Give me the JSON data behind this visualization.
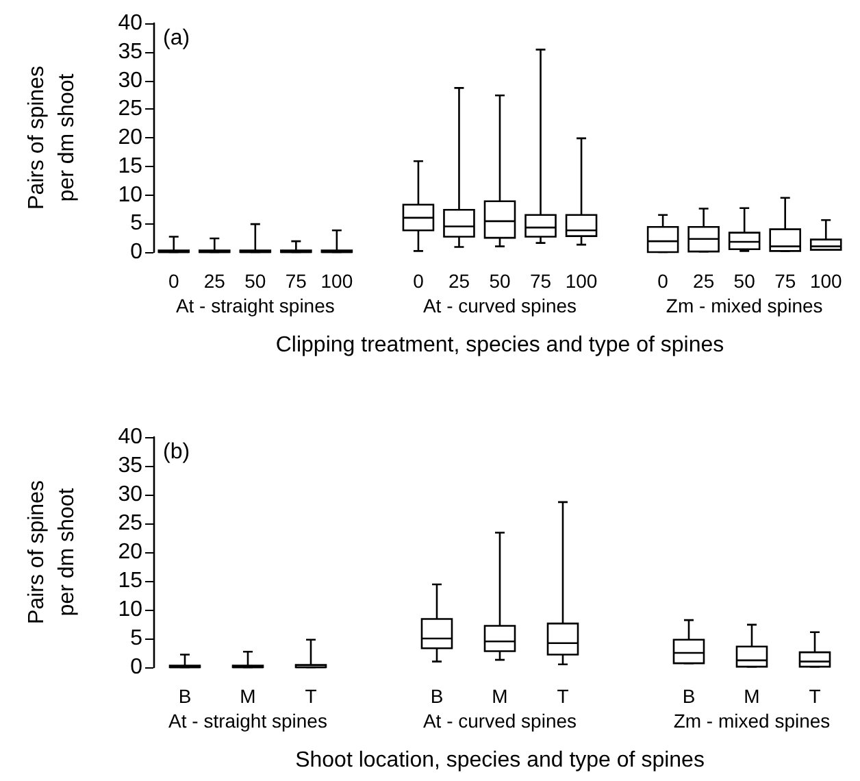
{
  "chart_data": [
    {
      "type": "box",
      "title": "(a)",
      "xlabel": "Clipping treatment, species and type of spines",
      "ylabel": "Pairs of spines\nper dm shoot",
      "categories": [
        "0",
        "25",
        "50",
        "75",
        "100",
        null,
        "0",
        "25",
        "50",
        "75",
        "100",
        null,
        "0",
        "25",
        "50",
        "75",
        "100"
      ],
      "annotations": [
        "At - straight spines",
        "At - curved spines",
        "Zm - mixed spines"
      ],
      "ylim": [
        0,
        40
      ],
      "yticks": [
        0,
        5,
        10,
        15,
        20,
        25,
        30,
        35,
        40
      ],
      "grid": false,
      "color": "#000000",
      "boxes": [
        {
          "low": 0,
          "q1": 0,
          "median": 0,
          "q3": 0.3,
          "high": 2.7
        },
        {
          "low": 0,
          "q1": 0,
          "median": 0,
          "q3": 0.3,
          "high": 2.4
        },
        {
          "low": 0,
          "q1": 0,
          "median": 0,
          "q3": 0.3,
          "high": 4.9
        },
        {
          "low": 0,
          "q1": 0,
          "median": 0,
          "q3": 0.3,
          "high": 1.9
        },
        {
          "low": 0,
          "q1": 0,
          "median": 0,
          "q3": 0.3,
          "high": 3.8
        },
        null,
        {
          "low": 0.2,
          "q1": 3.8,
          "median": 6.0,
          "q3": 8.3,
          "high": 15.9
        },
        {
          "low": 0.9,
          "q1": 2.7,
          "median": 4.5,
          "q3": 7.4,
          "high": 28.7
        },
        {
          "low": 1.0,
          "q1": 2.5,
          "median": 5.4,
          "q3": 8.9,
          "high": 27.4
        },
        {
          "low": 1.6,
          "q1": 2.7,
          "median": 4.3,
          "q3": 6.5,
          "high": 35.4
        },
        {
          "low": 1.3,
          "q1": 2.8,
          "median": 3.8,
          "q3": 6.5,
          "high": 19.9
        },
        null,
        {
          "low": 0,
          "q1": 0,
          "median": 1.9,
          "q3": 4.4,
          "high": 6.5
        },
        {
          "low": 0.1,
          "q1": 0.1,
          "median": 2.3,
          "q3": 4.4,
          "high": 7.6
        },
        {
          "low": 0.2,
          "q1": 0.5,
          "median": 1.8,
          "q3": 3.4,
          "high": 7.7
        },
        {
          "low": 0.2,
          "q1": 0.2,
          "median": 1.0,
          "q3": 4.0,
          "high": 9.5
        },
        {
          "low": 0.4,
          "q1": 0.4,
          "median": 1.0,
          "q3": 2.2,
          "high": 5.6
        }
      ]
    },
    {
      "type": "box",
      "title": "(b)",
      "xlabel": "Shoot location, species and type of spines",
      "ylabel": "Pairs of spines\nper dm shoot",
      "categories": [
        "B",
        "M",
        "T",
        null,
        "B",
        "M",
        "T",
        null,
        "B",
        "M",
        "T"
      ],
      "annotations": [
        "At - straight spines",
        "At - curved spines",
        "Zm - mixed spines"
      ],
      "ylim": [
        0,
        40
      ],
      "yticks": [
        0,
        5,
        10,
        15,
        20,
        25,
        30,
        35,
        40
      ],
      "grid": false,
      "color": "#000000",
      "boxes": [
        {
          "low": 0,
          "q1": 0,
          "median": 0,
          "q3": 0.3,
          "high": 2.2
        },
        {
          "low": 0,
          "q1": 0,
          "median": 0,
          "q3": 0.3,
          "high": 2.7
        },
        {
          "low": 0,
          "q1": 0,
          "median": 0,
          "q3": 0.4,
          "high": 4.8
        },
        null,
        {
          "low": 1.0,
          "q1": 3.3,
          "median": 5.0,
          "q3": 8.4,
          "high": 14.4
        },
        {
          "low": 1.3,
          "q1": 2.8,
          "median": 4.5,
          "q3": 7.2,
          "high": 23.4
        },
        {
          "low": 0.5,
          "q1": 2.2,
          "median": 4.2,
          "q3": 7.6,
          "high": 28.7
        },
        null,
        {
          "low": 0.7,
          "q1": 0.7,
          "median": 2.5,
          "q3": 4.8,
          "high": 8.2
        },
        {
          "low": 0.1,
          "q1": 0.1,
          "median": 1.2,
          "q3": 3.6,
          "high": 7.4
        },
        {
          "low": 0.1,
          "q1": 0.1,
          "median": 1.0,
          "q3": 2.6,
          "high": 6.1
        }
      ]
    }
  ]
}
